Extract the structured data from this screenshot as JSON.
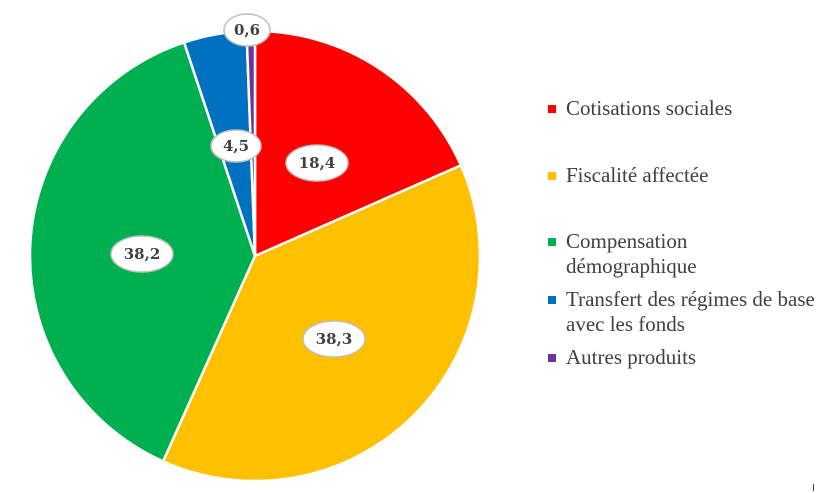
{
  "chart_data": {
    "type": "pie",
    "title": "",
    "slices": [
      {
        "label": "Cotisations sociales",
        "value": 18.4,
        "display": "18,4",
        "color": "#ff0000"
      },
      {
        "label": "Fiscalité affectée",
        "value": 38.3,
        "display": "38,3",
        "color": "#ffc000"
      },
      {
        "label": "Compensation démographique",
        "value": 38.2,
        "display": "38,2",
        "color": "#00b050"
      },
      {
        "label": "Transfert des régimes de base avec les fonds",
        "value": 4.5,
        "display": "4,5",
        "color": "#0070c0"
      },
      {
        "label": "Autres produits",
        "value": 0.6,
        "display": "0,6",
        "color": "#7030a0"
      }
    ],
    "legend_placement": "right"
  }
}
